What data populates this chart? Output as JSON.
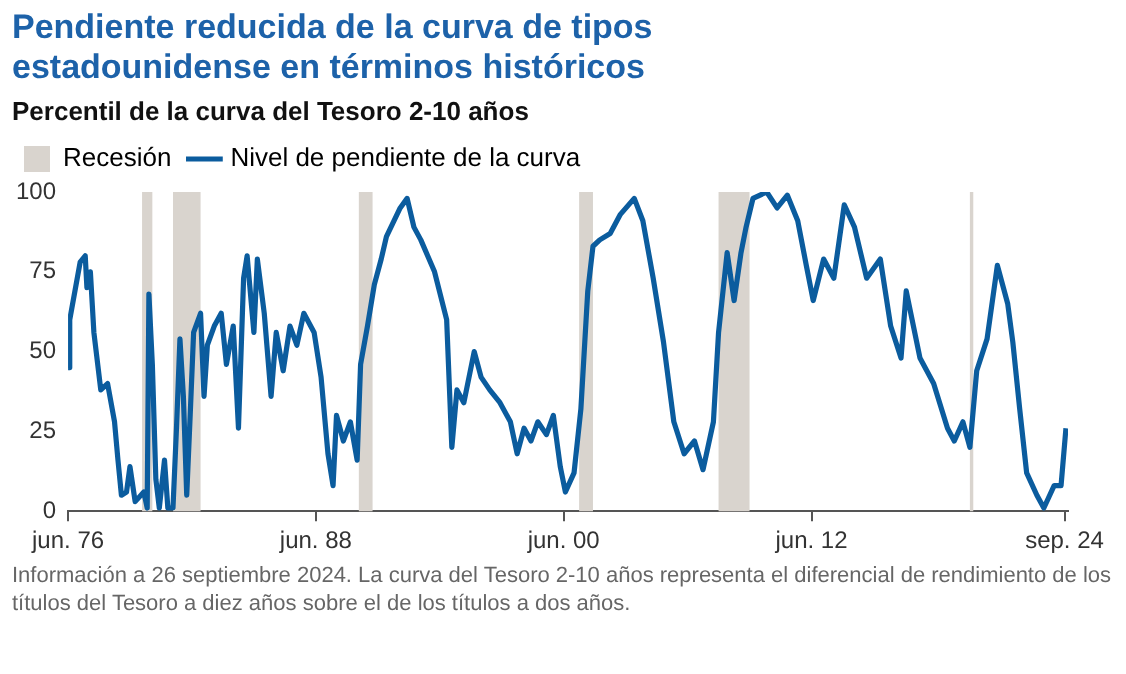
{
  "chart_data": {
    "type": "line",
    "title": "Pendiente reducida de la curva de tipos estadounidense en términos históricos",
    "subtitle": "Percentil de la curva del Tesoro 2-10 años",
    "annotations": [
      "Información a 26 septiembre 2024. La curva del Tesoro 2-10 años representa el diferencial de rendimiento de los títulos del Tesoro a diez años sobre el de los títulos a dos años."
    ],
    "xlim": [
      "1976-06",
      "2024-11"
    ],
    "xticks": [
      {
        "value": "1976-06",
        "label": "jun. 76"
      },
      {
        "value": "1988-06",
        "label": "jun. 88"
      },
      {
        "value": "2000-06",
        "label": "jun. 00"
      },
      {
        "value": "2012-06",
        "label": "jun. 12"
      },
      {
        "value": "2024-09",
        "label": "sep. 24"
      }
    ],
    "ylim": [
      0,
      100
    ],
    "yticks": [
      0,
      25,
      50,
      75,
      100
    ],
    "grid": false,
    "legend": "top left",
    "marker": "none",
    "line_style": "solid",
    "bands": [
      {
        "axis": "x",
        "from": "1980-01",
        "to": "1980-07",
        "label": "Recesión",
        "color": "#d9d4ce"
      },
      {
        "axis": "x",
        "from": "1981-07",
        "to": "1982-11",
        "color": "#d9d4ce"
      },
      {
        "axis": "x",
        "from": "1990-07",
        "to": "1991-03",
        "color": "#d9d4ce"
      },
      {
        "axis": "x",
        "from": "2001-03",
        "to": "2001-11",
        "color": "#d9d4ce"
      },
      {
        "axis": "x",
        "from": "2007-12",
        "to": "2009-06",
        "color": "#d9d4ce"
      },
      {
        "axis": "x",
        "from": "2020-02",
        "to": "2020-04",
        "color": "#d9d4ce"
      }
    ],
    "series": [
      {
        "name": "Nivel de pendiente de la curva",
        "color": "#0b5c9e",
        "x": [
          "1976-06",
          "1976-07",
          "1977-01",
          "1977-04",
          "1977-05",
          "1977-07",
          "1977-09",
          "1978-01",
          "1978-05",
          "1978-09",
          "1978-11",
          "1979-01",
          "1979-04",
          "1979-06",
          "1979-09",
          "1980-02",
          "1980-04",
          "1980-05",
          "1980-07",
          "1980-09",
          "1980-11",
          "1981-02",
          "1981-04",
          "1981-07",
          "1981-09",
          "1981-11",
          "1982-01",
          "1982-03",
          "1982-05",
          "1982-07",
          "1982-11",
          "1983-01",
          "1983-03",
          "1983-07",
          "1983-11",
          "1984-02",
          "1984-06",
          "1984-09",
          "1984-12",
          "1985-02",
          "1985-06",
          "1985-08",
          "1985-12",
          "1986-04",
          "1986-07",
          "1986-11",
          "1987-03",
          "1987-07",
          "1987-11",
          "1988-05",
          "1988-09",
          "1989-01",
          "1989-04",
          "1989-06",
          "1989-10",
          "1990-02",
          "1990-06",
          "1990-08",
          "1990-12",
          "1991-04",
          "1991-08",
          "1991-11",
          "1992-07",
          "1992-11",
          "1993-03",
          "1993-07",
          "1994-03",
          "1994-10",
          "1995-01",
          "1995-04",
          "1995-08",
          "1996-02",
          "1996-06",
          "1996-11",
          "1997-05",
          "1997-11",
          "1998-03",
          "1998-07",
          "1998-11",
          "1999-03",
          "1999-08",
          "1999-12",
          "2000-04",
          "2000-07",
          "2000-12",
          "2001-04",
          "2001-08",
          "2001-11",
          "2002-03",
          "2002-09",
          "2003-03",
          "2003-11",
          "2004-04",
          "2004-10",
          "2005-04",
          "2005-10",
          "2006-04",
          "2006-10",
          "2007-03",
          "2007-09",
          "2007-12",
          "2008-05",
          "2008-09",
          "2009-01",
          "2009-04",
          "2009-08",
          "2010-04",
          "2010-10",
          "2011-04",
          "2011-10",
          "2012-03",
          "2012-07",
          "2013-01",
          "2013-07",
          "2014-01",
          "2014-07",
          "2015-02",
          "2015-10",
          "2016-04",
          "2016-10",
          "2017-01",
          "2017-09",
          "2018-05",
          "2019-01",
          "2019-05",
          "2019-10",
          "2020-02",
          "2020-06",
          "2020-12",
          "2021-06",
          "2021-12",
          "2022-03",
          "2022-07",
          "2022-11",
          "2023-05",
          "2023-09",
          "2024-03",
          "2024-07",
          "2024-09-26"
        ],
        "values": [
          45,
          60,
          78,
          80,
          70,
          75,
          56,
          38,
          40,
          28,
          16,
          5,
          6,
          14,
          3,
          6,
          1,
          68,
          46,
          10,
          1,
          16,
          1,
          1,
          26,
          54,
          36,
          5,
          30,
          56,
          62,
          36,
          52,
          58,
          62,
          46,
          58,
          26,
          73,
          80,
          56,
          79,
          62,
          36,
          56,
          44,
          58,
          52,
          62,
          56,
          42,
          18,
          8,
          30,
          22,
          28,
          16,
          46,
          58,
          71,
          79,
          86,
          95,
          98,
          89,
          85,
          75,
          60,
          20,
          38,
          34,
          50,
          42,
          38,
          34,
          28,
          18,
          26,
          22,
          28,
          24,
          30,
          14,
          6,
          12,
          32,
          69,
          83,
          85,
          87,
          93,
          98,
          91,
          73,
          53,
          28,
          18,
          22,
          13,
          28,
          56,
          81,
          66,
          81,
          89,
          98,
          100,
          95,
          99,
          91,
          77,
          66,
          79,
          73,
          96,
          89,
          73,
          79,
          58,
          48,
          69,
          48,
          40,
          26,
          22,
          28,
          20,
          44,
          54,
          77,
          65,
          53,
          32,
          12,
          5,
          1,
          8,
          8,
          26
        ]
      }
    ]
  }
}
